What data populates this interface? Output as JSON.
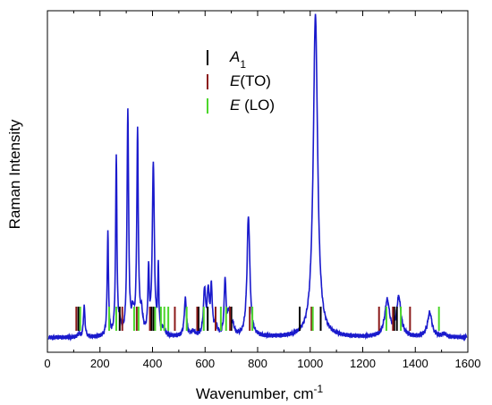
{
  "chart_data": {
    "type": "line",
    "xlabel": "Wavenumber, cm",
    "xlabel_sup": "-1",
    "ylabel": "Raman Intensity",
    "xlim": [
      0,
      1600
    ],
    "ylim": [
      0,
      1.05
    ],
    "x_ticks": [
      0,
      200,
      400,
      600,
      800,
      1000,
      1200,
      1400,
      1600
    ],
    "line_color": "#1a1acc",
    "spectrum": {
      "baseline": 0.045,
      "peaks": [
        {
          "x": 120,
          "h": 0.012,
          "w": 4
        },
        {
          "x": 140,
          "h": 0.095,
          "w": 3.5
        },
        {
          "x": 230,
          "h": 0.32,
          "w": 3
        },
        {
          "x": 262,
          "h": 0.55,
          "w": 3
        },
        {
          "x": 275,
          "h": 0.03,
          "w": 6
        },
        {
          "x": 306,
          "h": 0.69,
          "w": 3.5
        },
        {
          "x": 325,
          "h": 0.06,
          "w": 6
        },
        {
          "x": 343,
          "h": 0.62,
          "w": 3.5
        },
        {
          "x": 358,
          "h": 0.06,
          "w": 6
        },
        {
          "x": 385,
          "h": 0.19,
          "w": 3
        },
        {
          "x": 403,
          "h": 0.53,
          "w": 4.5
        },
        {
          "x": 422,
          "h": 0.2,
          "w": 2.5
        },
        {
          "x": 440,
          "h": 0.02,
          "w": 8
        },
        {
          "x": 525,
          "h": 0.115,
          "w": 5
        },
        {
          "x": 555,
          "h": 0.015,
          "w": 8
        },
        {
          "x": 598,
          "h": 0.14,
          "w": 5
        },
        {
          "x": 612,
          "h": 0.13,
          "w": 4.5
        },
        {
          "x": 624,
          "h": 0.14,
          "w": 4
        },
        {
          "x": 640,
          "h": 0.03,
          "w": 8
        },
        {
          "x": 676,
          "h": 0.17,
          "w": 4
        },
        {
          "x": 690,
          "h": 0.07,
          "w": 6
        },
        {
          "x": 705,
          "h": 0.03,
          "w": 7
        },
        {
          "x": 765,
          "h": 0.37,
          "w": 6.5
        },
        {
          "x": 1020,
          "h": 0.99,
          "w": 10
        },
        {
          "x": 1293,
          "h": 0.11,
          "w": 11
        },
        {
          "x": 1337,
          "h": 0.12,
          "w": 10
        },
        {
          "x": 1455,
          "h": 0.075,
          "w": 10
        },
        {
          "x": 1510,
          "h": 0.01,
          "w": 10
        }
      ]
    },
    "legend": [
      {
        "label": "A",
        "sub": "1",
        "italic": true,
        "color": "#000000"
      },
      {
        "label": "E",
        "suffix": "(TO)",
        "italic": true,
        "color": "#8b1a1a"
      },
      {
        "label": "E",
        "suffix": " (LO)",
        "italic": true,
        "color": "#4cd62b"
      }
    ],
    "markers": {
      "A1": [
        118,
        275,
        395,
        403,
        575,
        610,
        700,
        960,
        1040,
        1320,
        1330
      ],
      "E_TO": [
        110,
        285,
        340,
        390,
        485,
        570,
        640,
        695,
        770,
        1005,
        1262,
        1315,
        1380
      ],
      "E_LO": [
        125,
        235,
        262,
        330,
        347,
        410,
        432,
        445,
        460,
        530,
        595,
        660,
        680,
        780,
        1010,
        1290,
        1345,
        1490
      ]
    }
  }
}
